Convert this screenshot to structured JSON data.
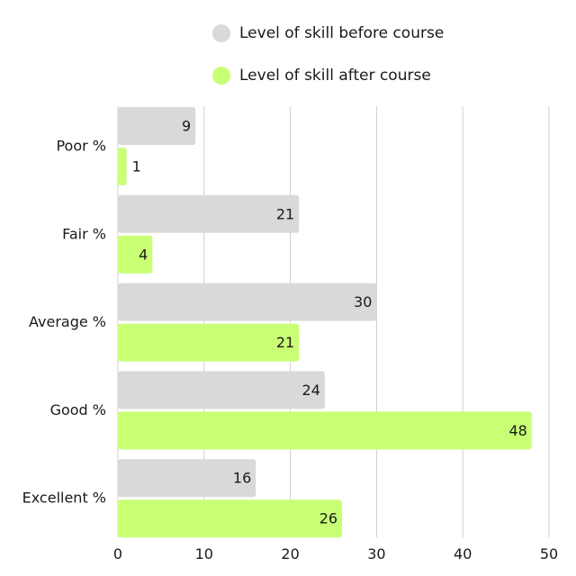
{
  "chart_data": {
    "type": "bar",
    "orientation": "horizontal",
    "categories": [
      "Poor %",
      "Fair %",
      "Average %",
      "Good %",
      "Excellent %"
    ],
    "series": [
      {
        "name": "Level of skill before course",
        "values": [
          9,
          21,
          30,
          24,
          16
        ],
        "color": "#d9d9d9"
      },
      {
        "name": "Level of skill after course",
        "values": [
          1,
          4,
          21,
          48,
          26
        ],
        "color": "#c9ff75"
      }
    ],
    "xticks": [
      0,
      10,
      20,
      30,
      40,
      50
    ],
    "xlim": [
      0,
      50
    ],
    "title": "",
    "xlabel": "",
    "ylabel": "",
    "grid": true,
    "legend_position": "top"
  }
}
